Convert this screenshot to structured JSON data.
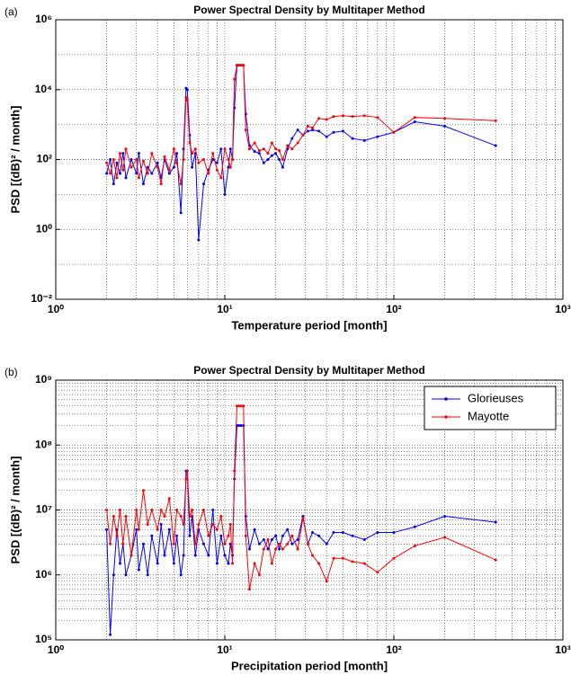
{
  "charts": [
    {
      "type": "line",
      "panel_label": "(a)",
      "title": "Power Spectral Density by Multitaper Method",
      "xlabel": "Temperature period [month]",
      "ylabel": "PSD [(dB)² / month]",
      "xscale": "log",
      "yscale": "log",
      "grid": true,
      "minor_grid_x": true,
      "minor_grid_y": false,
      "xlim": [
        1,
        1000
      ],
      "xticks": [
        {
          "value": 1,
          "label": "10⁰"
        },
        {
          "value": 10,
          "label": "10¹"
        },
        {
          "value": 100,
          "label": "10²"
        },
        {
          "value": 1000,
          "label": "10³"
        }
      ],
      "ylim": [
        0.01,
        1000000
      ],
      "yticks": [
        {
          "value": 0.01,
          "label": "10⁻²"
        },
        {
          "value": 1,
          "label": "10⁰"
        },
        {
          "value": 100,
          "label": "10²"
        },
        {
          "value": 10000,
          "label": "10⁴"
        },
        {
          "value": 1000000,
          "label": "10⁶"
        }
      ],
      "x": [
        400,
        200,
        133,
        100,
        80,
        67,
        57,
        50,
        44,
        40,
        36,
        33,
        31,
        29,
        27,
        25,
        23.5,
        22,
        21,
        20,
        19,
        18,
        17,
        16,
        15,
        14,
        13.3,
        12.9,
        12.5,
        12.1,
        11.8,
        11.4,
        11.1,
        10.8,
        10.5,
        10,
        9.5,
        9,
        8.5,
        8,
        7.5,
        7,
        6.7,
        6.4,
        6.2,
        6.0,
        5.9,
        5.7,
        5.5,
        5.2,
        5,
        4.7,
        4.4,
        4.2,
        4,
        3.7,
        3.5,
        3.3,
        3.1,
        3.0,
        2.8,
        2.6,
        2.5,
        2.4,
        2.3,
        2.2,
        2.1,
        2.0
      ],
      "series": [
        {
          "color": "#0000ff",
          "values": [
            250,
            900,
            1200,
            600,
            450,
            350,
            400,
            650,
            600,
            450,
            650,
            700,
            650,
            500,
            700,
            400,
            200,
            60,
            100,
            150,
            130,
            100,
            80,
            150,
            170,
            250,
            2000,
            50000,
            50000,
            50000,
            50000,
            3000,
            100,
            200,
            60,
            10,
            200,
            80,
            100,
            50,
            20,
            0.5,
            150,
            60,
            500,
            10000,
            11000,
            200,
            3,
            150,
            60,
            40,
            100,
            30,
            80,
            40,
            60,
            20,
            150,
            40,
            100,
            30,
            150,
            40,
            80,
            20,
            100,
            40
          ]
        },
        {
          "color": "#ff0000",
          "values": [
            1300,
            1500,
            1600,
            600,
            1600,
            1800,
            1700,
            1800,
            1700,
            1400,
            1500,
            800,
            900,
            500,
            300,
            200,
            250,
            100,
            180,
            200,
            300,
            150,
            200,
            180,
            300,
            200,
            700,
            50000,
            50000,
            50000,
            50000,
            20000,
            100,
            60,
            100,
            200,
            30,
            50,
            150,
            40,
            100,
            80,
            200,
            150,
            300,
            5000,
            6000,
            100,
            20,
            80,
            200,
            50,
            120,
            20,
            60,
            150,
            40,
            90,
            30,
            100,
            60,
            200,
            50,
            150,
            30,
            100,
            40,
            80
          ]
        }
      ]
    },
    {
      "type": "line",
      "panel_label": "(b)",
      "title": "Power Spectral Density by Multitaper Method",
      "xlabel": "Precipitation period [month]",
      "ylabel": "PSD [(dB)² / month]",
      "xscale": "log",
      "yscale": "log",
      "grid": true,
      "minor_grid_x": true,
      "minor_grid_y": true,
      "legend": "upper right",
      "xlim": [
        1,
        1000
      ],
      "xticks": [
        {
          "value": 1,
          "label": "10⁰"
        },
        {
          "value": 10,
          "label": "10¹"
        },
        {
          "value": 100,
          "label": "10²"
        },
        {
          "value": 1000,
          "label": "10³"
        }
      ],
      "ylim": [
        100000,
        1000000000
      ],
      "yticks": [
        {
          "value": 100000,
          "label": "10⁵"
        },
        {
          "value": 1000000,
          "label": "10⁶"
        },
        {
          "value": 10000000,
          "label": "10⁷"
        },
        {
          "value": 100000000,
          "label": "10⁸"
        },
        {
          "value": 1000000000,
          "label": "10⁹"
        }
      ],
      "x": [
        400,
        200,
        133,
        100,
        80,
        67,
        57,
        50,
        44,
        40,
        36,
        33,
        31,
        29,
        27,
        25,
        23.5,
        22,
        21,
        20,
        19,
        18,
        17,
        16,
        15,
        14,
        13.3,
        12.9,
        12.5,
        12.1,
        11.8,
        11.4,
        11.1,
        10.8,
        10.5,
        10,
        9.5,
        9,
        8.5,
        8,
        7.5,
        7,
        6.7,
        6.4,
        6.2,
        6.0,
        5.9,
        5.7,
        5.5,
        5.2,
        5,
        4.7,
        4.4,
        4.2,
        4,
        3.7,
        3.5,
        3.3,
        3.1,
        3.0,
        2.8,
        2.6,
        2.5,
        2.4,
        2.3,
        2.2,
        2.1,
        2.0
      ],
      "series": [
        {
          "name": "Glorieuses",
          "color": "#0000ff",
          "values": [
            6500000,
            8000000,
            5500000,
            4500000,
            4500000,
            3500000,
            4000000,
            4500000,
            4500000,
            3000000,
            4000000,
            4500000,
            3000000,
            8000000,
            3500000,
            3000000,
            5000000,
            4000000,
            2500000,
            4000000,
            3500000,
            2500000,
            3500000,
            3000000,
            5000000,
            2500000,
            8000000,
            200000000,
            200000000,
            200000000,
            200000000,
            30000000,
            2000000,
            3000000,
            1500000,
            2000000,
            4000000,
            1500000,
            10000000,
            2000000,
            3000000,
            5000000,
            2000000,
            8000000,
            4000000,
            40000000,
            40000000,
            2000000,
            1000000,
            4000000,
            1500000,
            5000000,
            2000000,
            6000000,
            1500000,
            4000000,
            1000000,
            3000000,
            1200000,
            5000000,
            2000000,
            1000000,
            3000000,
            1500000,
            5000000,
            1000000,
            120000,
            5000000
          ]
        },
        {
          "name": "Mayotte",
          "color": "#ff0000",
          "values": [
            1700000,
            3800000,
            2800000,
            1800000,
            1100000,
            1500000,
            1600000,
            1800000,
            1800000,
            800000,
            1500000,
            2000000,
            3000000,
            7500000,
            2500000,
            4000000,
            3000000,
            2500000,
            3000000,
            2500000,
            1500000,
            3500000,
            2500000,
            1000000,
            1500000,
            600000,
            4000000,
            400000000,
            400000000,
            400000000,
            400000000,
            40000000,
            1500000,
            6000000,
            4000000,
            3000000,
            8000000,
            5000000,
            6000000,
            4000000,
            10000000,
            6000000,
            3000000,
            10000000,
            8000000,
            40000000,
            30000000,
            6000000,
            8000000,
            10000000,
            3000000,
            15000000,
            8000000,
            10000000,
            5000000,
            10000000,
            6000000,
            20000000,
            5000000,
            10000000,
            2000000,
            8000000,
            3000000,
            10000000,
            4000000,
            8000000,
            3000000,
            10000000
          ]
        }
      ]
    }
  ]
}
